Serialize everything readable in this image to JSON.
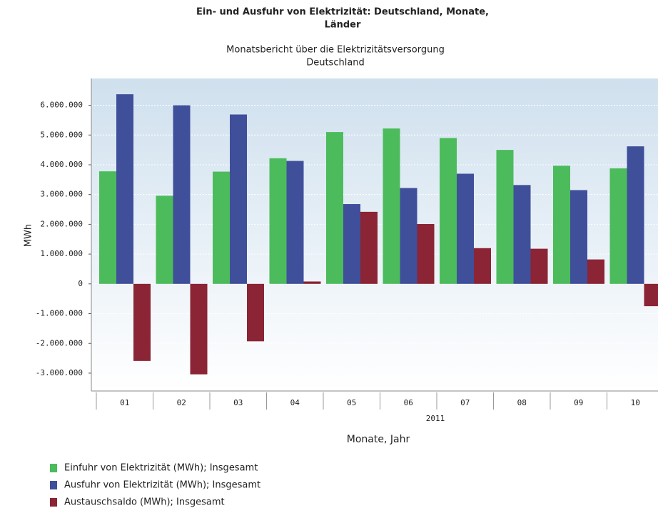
{
  "chart_data": {
    "type": "bar",
    "title": [
      "Ein- und Ausfuhr von Elektrizität: Deutschland, Monate,",
      "Länder"
    ],
    "subtitle": [
      "Monatsbericht über die Elektrizitätsversorgung",
      "Deutschland"
    ],
    "y_label": "MWh",
    "x_label": "Monate, Jahr",
    "x_group_label": "2011",
    "categories": [
      "01",
      "02",
      "03",
      "04",
      "05",
      "06",
      "07",
      "08",
      "09",
      "10"
    ],
    "series": [
      {
        "name": "Einfuhr von Elektrizität (MWh); Insgesamt",
        "color": "#4cbb5c",
        "values": [
          3780000,
          2960000,
          3770000,
          4220000,
          5100000,
          5220000,
          4900000,
          4500000,
          3970000,
          3880000
        ]
      },
      {
        "name": "Ausfuhr von Elektrizität (MWh); Insgesamt",
        "color": "#3f4f9a",
        "values": [
          6370000,
          6000000,
          5690000,
          4130000,
          2680000,
          3220000,
          3700000,
          3320000,
          3150000,
          4620000
        ]
      },
      {
        "name": "Austauschsaldo (MWh); Insgesamt",
        "color": "#8b2434",
        "values": [
          -2590000,
          -3040000,
          -1930000,
          80000,
          2420000,
          2010000,
          1200000,
          1180000,
          820000,
          -750000
        ]
      }
    ],
    "ylim": [
      -3600000,
      6900000
    ],
    "yticks": [
      {
        "value": -3000000,
        "label": "-3.000.000"
      },
      {
        "value": -2000000,
        "label": "-2.000.000"
      },
      {
        "value": -1000000,
        "label": "-1.000.000"
      },
      0,
      {
        "value": 1000000,
        "label": "1.000.000"
      },
      {
        "value": 2000000,
        "label": "2.000.000"
      },
      {
        "value": 3000000,
        "label": "3.000.000"
      },
      {
        "value": 4000000,
        "label": "4.000.000"
      },
      {
        "value": 5000000,
        "label": "5.000.000"
      },
      {
        "value": 6000000,
        "label": "6.000.000"
      }
    ],
    "grid": true
  }
}
